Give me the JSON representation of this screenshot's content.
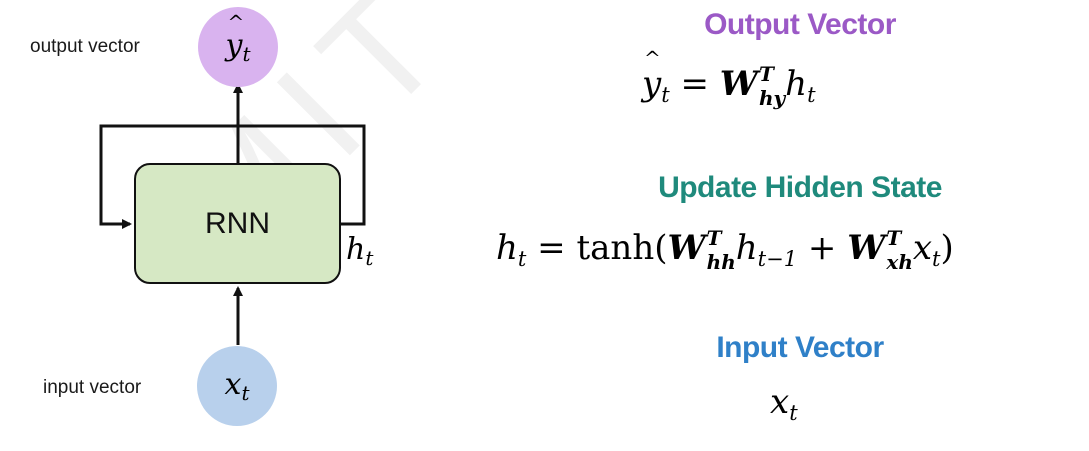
{
  "watermark": "MIT 6.S191",
  "diagram": {
    "output_label": "output vector",
    "input_label": "input vector",
    "cell_label": "RNN",
    "output_symbol": "y",
    "output_sub": "t",
    "input_symbol": "x",
    "input_sub": "t",
    "hidden_symbol": "h",
    "hidden_sub": "t",
    "colors": {
      "output_node": "#d9b3ef",
      "input_node": "#b8d0ec",
      "cell_fill": "#d6e8c4"
    }
  },
  "sections": {
    "output": {
      "title": "Output Vector",
      "color": "#9b59c6",
      "equation": {
        "lhs": "y",
        "lhs_sub": "t",
        "eq": "=",
        "w": "W",
        "w_sup": "T",
        "w_sub": "hy",
        "h": "h",
        "h_sub": "t"
      }
    },
    "hidden": {
      "title": "Update Hidden State",
      "color": "#1f8a7c",
      "equation": {
        "lhs": "h",
        "lhs_sub": "t",
        "eq": "=",
        "fn": "tanh(",
        "w1": "W",
        "w1_sup": "T",
        "w1_sub": "hh",
        "h": "h",
        "h_sub": "t−1",
        "plus": "+",
        "w2": "W",
        "w2_sup": "T",
        "w2_sub": "xh",
        "x": "x",
        "x_sub": "t",
        "close": ")"
      }
    },
    "input": {
      "title": "Input Vector",
      "color": "#2f80c8",
      "equation": {
        "x": "x",
        "x_sub": "t"
      }
    }
  }
}
